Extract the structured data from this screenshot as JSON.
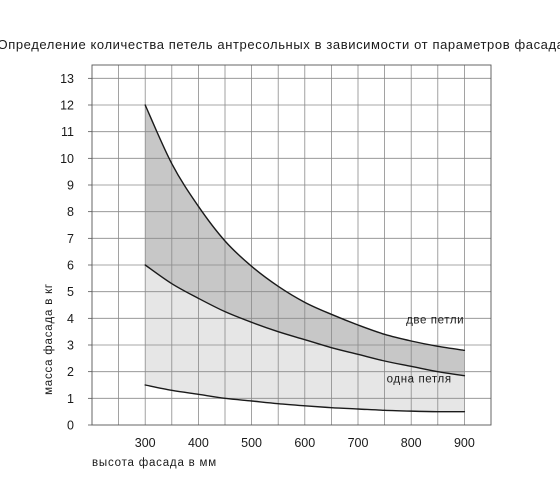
{
  "chart_data": {
    "type": "area",
    "title": "Определение количества петель антресольных в зависимости от параметров фасада",
    "xlabel": "высота фасада в мм",
    "ylabel": "масса фасада в кг",
    "xlim": [
      200,
      950
    ],
    "ylim": [
      0,
      13.5
    ],
    "x_ticks": [
      300,
      400,
      500,
      600,
      700,
      800,
      900
    ],
    "y_ticks": [
      0,
      1,
      2,
      3,
      4,
      5,
      6,
      7,
      8,
      9,
      10,
      11,
      12,
      13
    ],
    "x_grid_step": 50,
    "y_grid_step": 1,
    "grid": true,
    "x": [
      300,
      350,
      400,
      450,
      500,
      550,
      600,
      650,
      700,
      750,
      800,
      850,
      900
    ],
    "series": [
      {
        "values": [
          12.0,
          9.8,
          8.2,
          6.9,
          5.95,
          5.2,
          4.6,
          4.15,
          3.75,
          3.4,
          3.15,
          2.95,
          2.8
        ]
      },
      {
        "values": [
          6.0,
          5.3,
          4.75,
          4.25,
          3.85,
          3.5,
          3.2,
          2.9,
          2.65,
          2.4,
          2.2,
          2.0,
          1.85
        ]
      },
      {
        "values": [
          1.5,
          1.3,
          1.15,
          1.0,
          0.9,
          0.8,
          0.72,
          0.65,
          0.6,
          0.55,
          0.52,
          0.5,
          0.5
        ]
      }
    ],
    "bands": [
      {
        "between": [
          0,
          1
        ],
        "color": "#c7c7c7"
      },
      {
        "between": [
          1,
          2
        ],
        "color": "#e6e6e6"
      }
    ],
    "annotations": [
      {
        "text": "две петли",
        "x": 845,
        "y": 3.8
      },
      {
        "text": "одна петля",
        "x": 815,
        "y": 1.6
      }
    ],
    "line_color": "#1a1a1a",
    "grid_color": "#8a8a8a"
  }
}
